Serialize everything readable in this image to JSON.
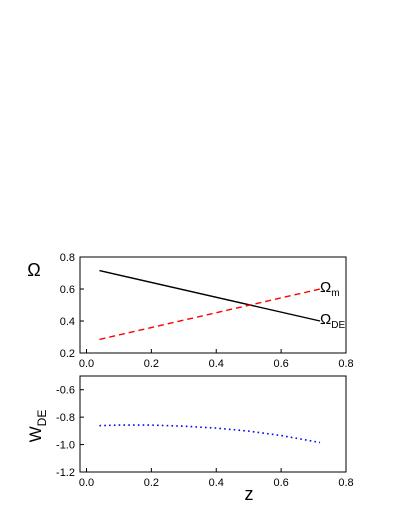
{
  "chart_data": [
    {
      "type": "line",
      "ylabel": "Ω",
      "xlim": [
        -0.02,
        0.8
      ],
      "ylim": [
        0.2,
        0.8
      ],
      "x_ticks": [
        0.0,
        0.2,
        0.4,
        0.6,
        0.8
      ],
      "x_tick_labels": [
        "0.0",
        "0.2",
        "0.4",
        "0.6",
        "0.8"
      ],
      "y_ticks": [
        0.2,
        0.4,
        0.6,
        0.8
      ],
      "y_tick_labels": [
        "0.2",
        "0.4",
        "0.6",
        "0.8"
      ],
      "grid": false,
      "series": [
        {
          "name": "ΩDE",
          "label_main": "Ω",
          "label_sub": "DE",
          "color": "#000000",
          "style": "solid",
          "x": [
            0.04,
            0.72
          ],
          "y": [
            0.715,
            0.4
          ]
        },
        {
          "name": "Ωm",
          "label_main": "Ω",
          "label_sub": "m",
          "color": "#ff0000",
          "style": "dashed",
          "x": [
            0.04,
            0.72
          ],
          "y": [
            0.285,
            0.6
          ]
        }
      ]
    },
    {
      "type": "line",
      "xlabel": "z",
      "ylabel": "WDE",
      "ylabel_main": "W",
      "ylabel_sub": "DE",
      "xlim": [
        -0.02,
        0.8
      ],
      "ylim": [
        -1.2,
        -0.5
      ],
      "x_ticks": [
        0.0,
        0.2,
        0.4,
        0.6,
        0.8
      ],
      "x_tick_labels": [
        "0.0",
        "0.2",
        "0.4",
        "0.6",
        "0.8"
      ],
      "y_ticks": [
        -1.2,
        -1.0,
        -0.8,
        -0.6
      ],
      "y_tick_labels": [
        "-1.2",
        "-1.0",
        "-0.8",
        "-0.6"
      ],
      "grid": false,
      "series": [
        {
          "color": "#0000ff",
          "style": "dotted",
          "x": [
            0.04,
            0.1,
            0.2,
            0.3,
            0.4,
            0.5,
            0.6,
            0.72
          ],
          "y": [
            -0.862,
            -0.858,
            -0.858,
            -0.866,
            -0.88,
            -0.902,
            -0.934,
            -0.985
          ]
        }
      ]
    }
  ]
}
